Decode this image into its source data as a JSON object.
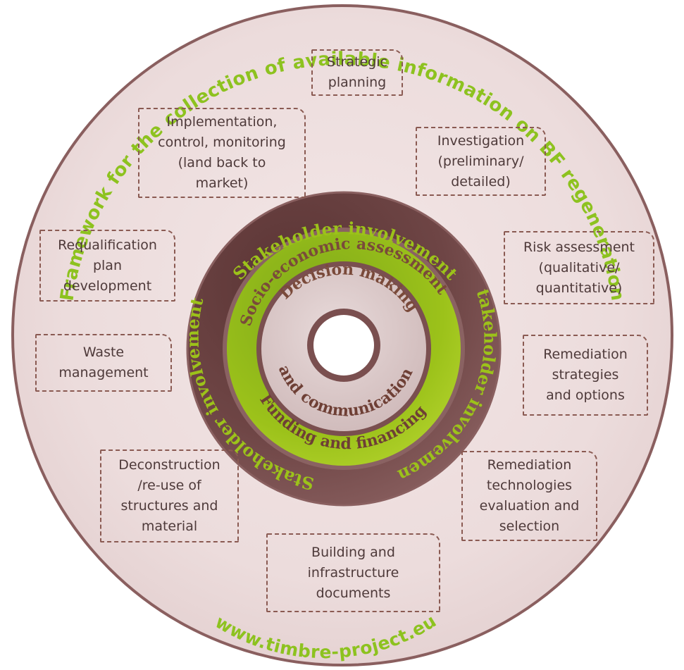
{
  "outer_ring": {
    "title": "Framework for the collection of available information on BF regeneration",
    "url": "www.timbre-project.eu"
  },
  "rings": {
    "stakeholder_top": "Stakeholder  involvement",
    "stakeholder_right": "Stakeholder  involvement",
    "stakeholder_left": "Stakeholder  involvement",
    "socio_economic": "Socio-economic assessment",
    "funding": "Funding and financing",
    "decision_top": "Decision making",
    "decision_bottom": "and communication"
  },
  "steps": [
    {
      "id": "strategic",
      "label": "Strategic\nplanning"
    },
    {
      "id": "investigation",
      "label": "Investigation\n(preliminary/\ndetailed)"
    },
    {
      "id": "risk",
      "label": "Risk assessment\n(qualitative/\nquantitative)"
    },
    {
      "id": "remediation-strategies",
      "label": "Remediation\nstrategies\nand options"
    },
    {
      "id": "remediation-technologies",
      "label": "Remediation\ntechnologies\nevaluation and\nselection"
    },
    {
      "id": "building",
      "label": "Building and\ninfrastructure\ndocuments"
    },
    {
      "id": "deconstruction",
      "label": "Deconstruction\n/re-use of\nstructures and\nmaterial"
    },
    {
      "id": "waste",
      "label": "Waste\nmanagement"
    },
    {
      "id": "requalification",
      "label": "Requalification\nplan\ndevelopment"
    },
    {
      "id": "implementation",
      "label": "Implementation,\ncontrol, monitoring\n(land back to\nmarket)"
    }
  ],
  "colors": {
    "disc_fill": "#ead9d9",
    "disc_border": "#8a5f5f",
    "stakeholder_ring": "#6e4444",
    "green_ring": "#9cc21a",
    "inner_disc": "#decbcb",
    "title_green": "#8dc21f",
    "ring_text_brown": "#7a4a3a"
  }
}
